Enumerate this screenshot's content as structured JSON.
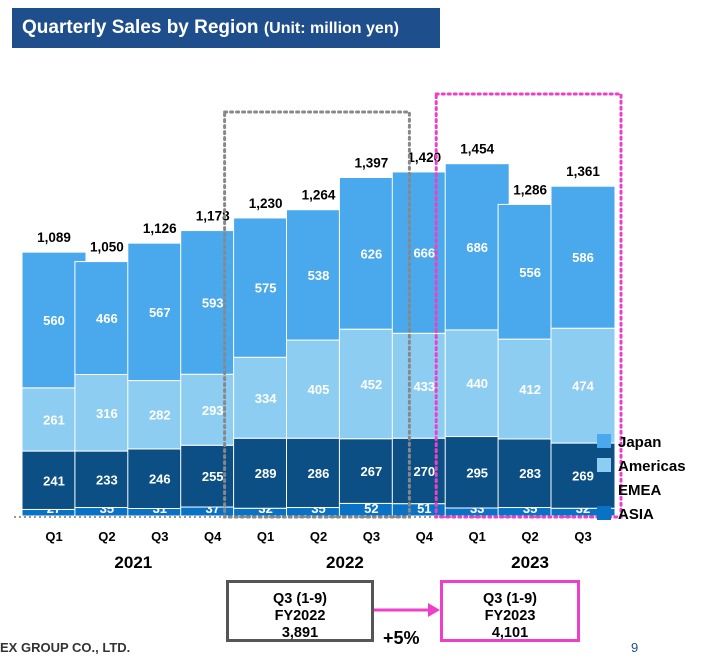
{
  "header": {
    "title_main": "Quarterly Sales by Region",
    "title_unit": "(Unit: million yen)"
  },
  "colors": {
    "Japan": "#4aa8ec",
    "Americas": "#8ecdf2",
    "EMEA": "#0c4f85",
    "ASIA": "#0a72c4",
    "highlight_2022": "#888888",
    "highlight_2023": "#ee3fc8",
    "title_bg": "#1f4e8c"
  },
  "chart_data": {
    "type": "bar",
    "stacked": true,
    "title": "Quarterly Sales by Region (Unit: million yen)",
    "categories": [
      "Q1",
      "Q2",
      "Q3",
      "Q4",
      "Q1",
      "Q2",
      "Q3",
      "Q4",
      "Q1",
      "Q2",
      "Q3"
    ],
    "years": [
      {
        "label": "2021",
        "start": 0,
        "end": 3
      },
      {
        "label": "2022",
        "start": 4,
        "end": 7
      },
      {
        "label": "2023",
        "start": 8,
        "end": 10
      }
    ],
    "series": [
      {
        "name": "ASIA",
        "values": [
          27,
          35,
          31,
          37,
          32,
          35,
          52,
          51,
          33,
          35,
          32
        ]
      },
      {
        "name": "EMEA",
        "values": [
          241,
          233,
          246,
          255,
          289,
          286,
          267,
          270,
          295,
          283,
          269
        ]
      },
      {
        "name": "Americas",
        "values": [
          261,
          316,
          282,
          293,
          334,
          405,
          452,
          433,
          440,
          412,
          474
        ]
      },
      {
        "name": "Japan",
        "values": [
          560,
          466,
          567,
          593,
          575,
          538,
          626,
          666,
          686,
          556,
          586
        ]
      }
    ],
    "totals": [
      1089,
      1050,
      1126,
      1178,
      1230,
      1264,
      1397,
      1420,
      1454,
      1286,
      1361
    ],
    "legend": [
      "Japan",
      "Americas",
      "EMEA",
      "ASIA"
    ],
    "legend_position": "right",
    "highlight_ranges": [
      {
        "start": 4,
        "end": 6,
        "style": "dotted",
        "color": "gray"
      },
      {
        "start": 8,
        "end": 10,
        "style": "dotted",
        "color": "magenta"
      }
    ]
  },
  "comparison": {
    "box_2022": {
      "line1": "Q3 (1-9)",
      "line2": "FY2022",
      "line3": "3,891"
    },
    "box_2023": {
      "line1": "Q3 (1-9)",
      "line2": "FY2023",
      "line3": "4,101"
    },
    "growth": "+5%"
  },
  "footer": {
    "company": "EX GROUP CO., LTD.",
    "page": "9"
  }
}
